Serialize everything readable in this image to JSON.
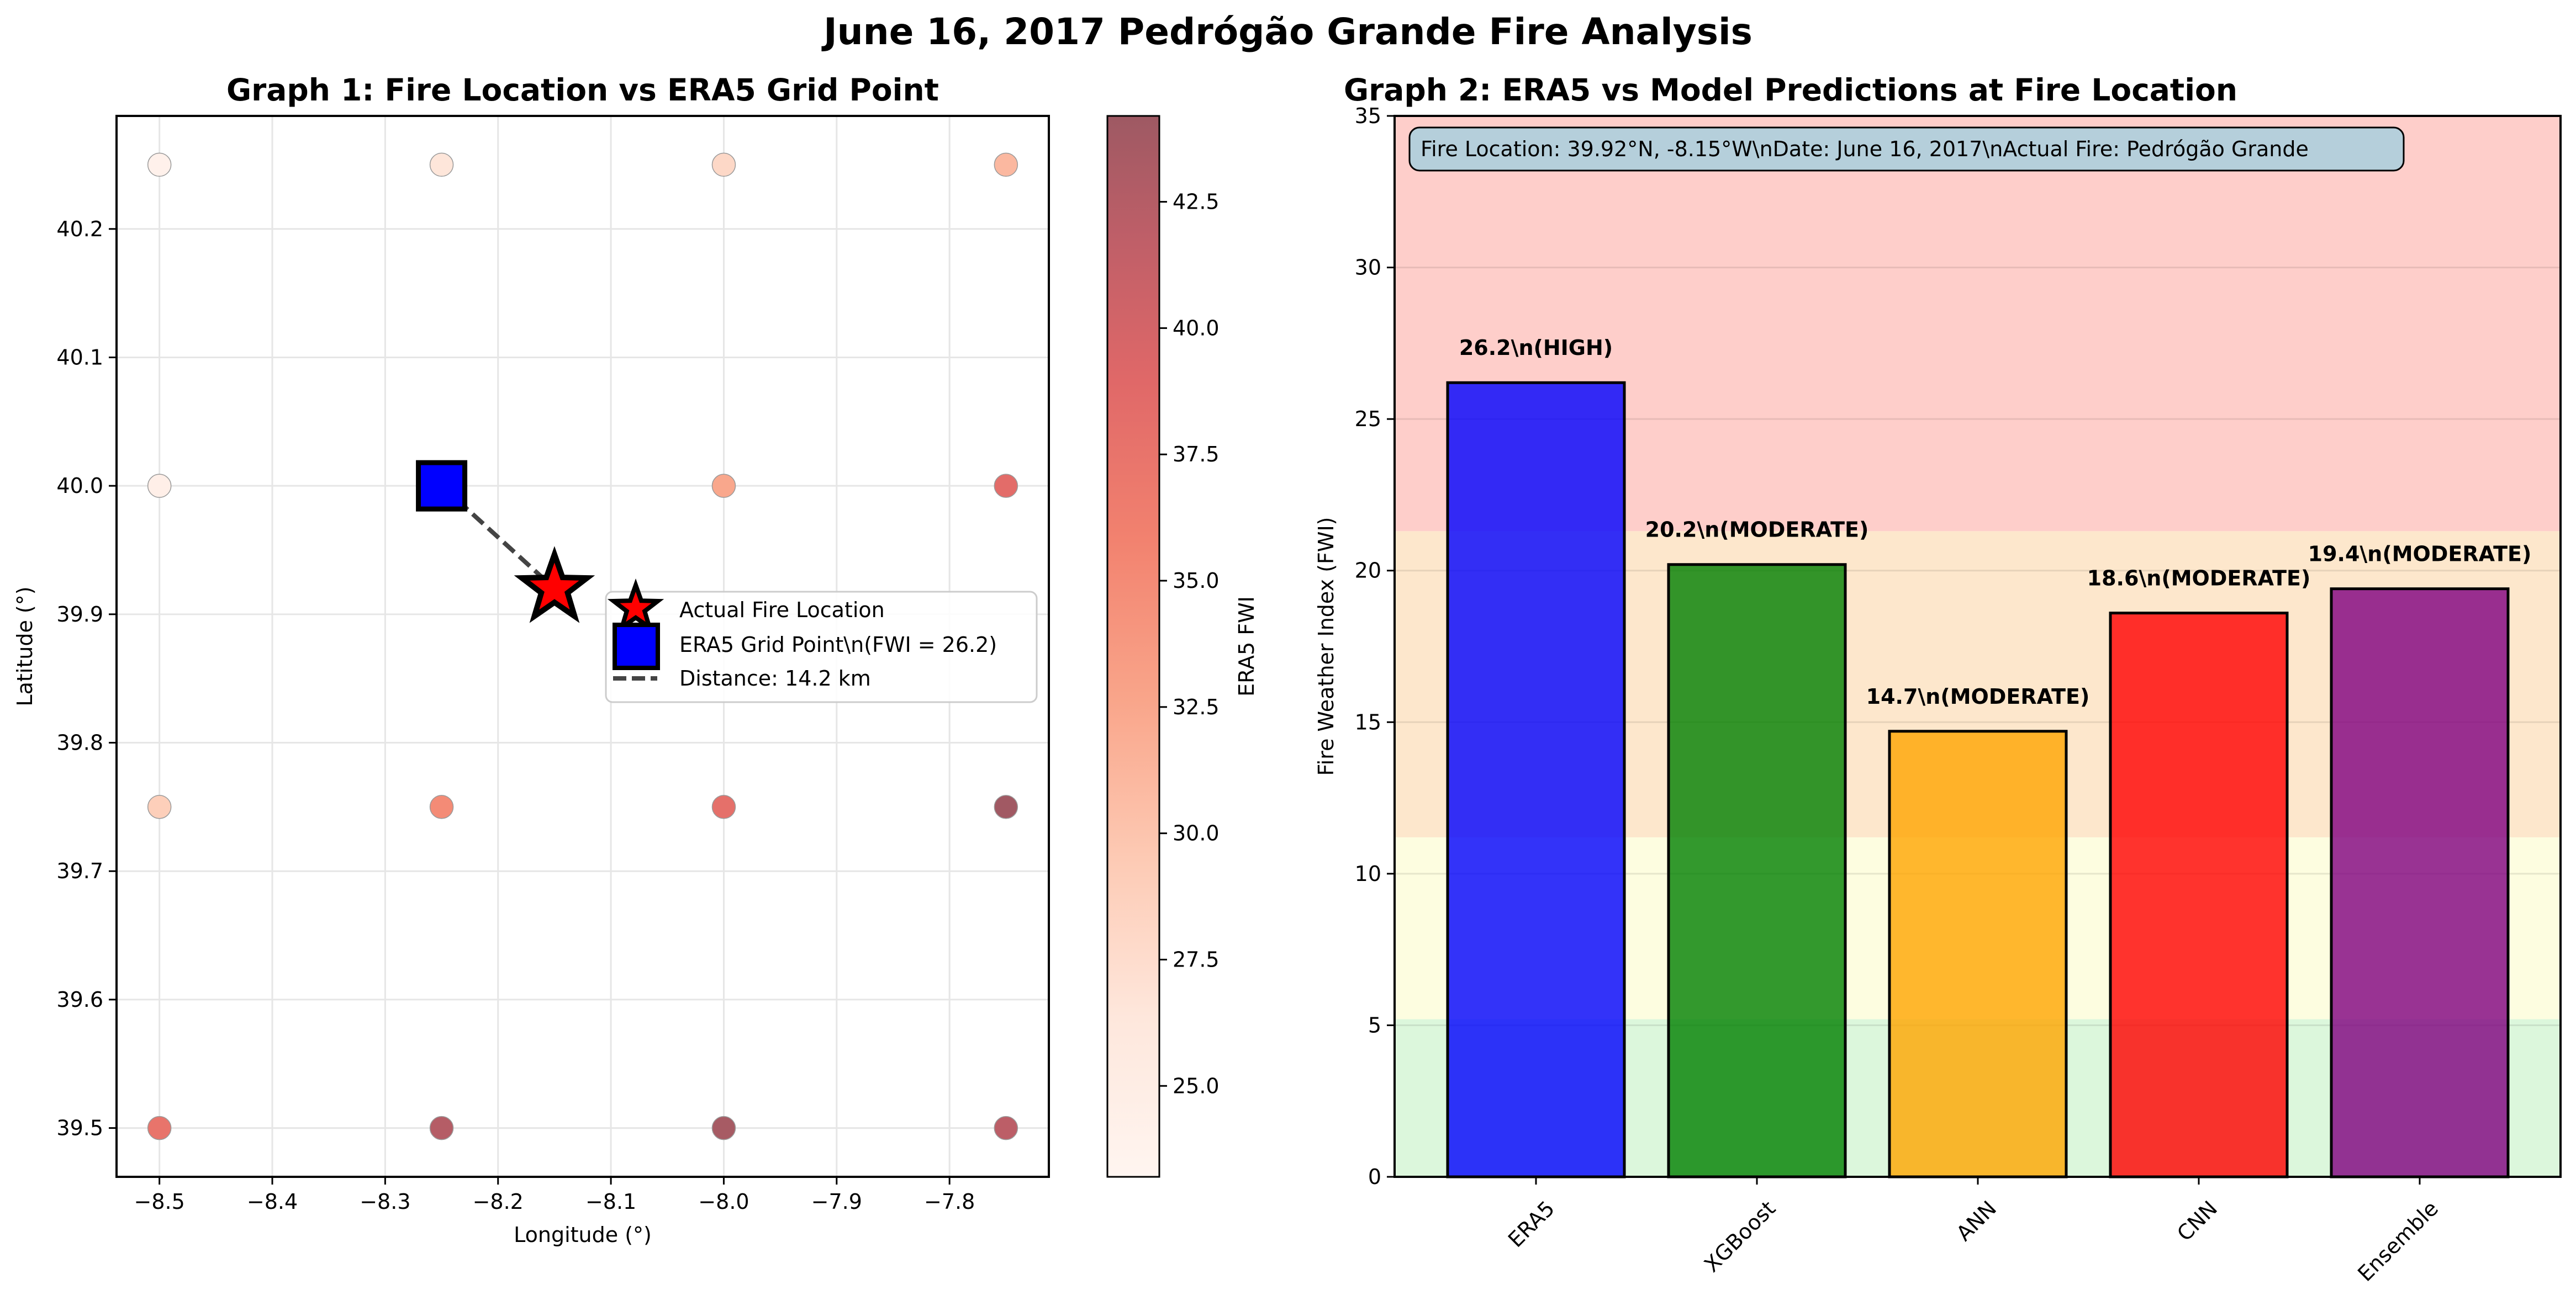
{
  "figure": {
    "title": "June 16, 2017 Pedrógão Grande Fire Analysis"
  },
  "chart_data": [
    {
      "type": "scatter",
      "title": "Graph 1: Fire Location vs ERA5 Grid Point",
      "xlabel": "Longitude (°)",
      "ylabel": "Latitude (°)",
      "xlim": [
        -8.538,
        -7.712
      ],
      "ylim": [
        39.462,
        40.288
      ],
      "xticks": [
        -8.5,
        -8.4,
        -8.3,
        -8.2,
        -8.1,
        -8.0,
        -7.9,
        -7.8
      ],
      "xtick_labels": [
        "−8.5",
        "−8.4",
        "−8.3",
        "−8.2",
        "−8.1",
        "−8.0",
        "−7.9",
        "−7.8"
      ],
      "yticks": [
        39.5,
        39.6,
        39.7,
        39.8,
        39.9,
        40.0,
        40.1,
        40.2
      ],
      "ytick_labels": [
        "39.5",
        "39.6",
        "39.7",
        "39.8",
        "39.9",
        "40.0",
        "40.1",
        "40.2"
      ],
      "grid": true,
      "colormap": "Reds",
      "colorbar": {
        "label": "ERA5 FWI",
        "range": [
          23.2,
          44.2
        ],
        "ticks": [
          25.0,
          27.5,
          30.0,
          32.5,
          35.0,
          37.5,
          40.0,
          42.5
        ],
        "tick_labels": [
          "25.0",
          "27.5",
          "30.0",
          "32.5",
          "35.0",
          "37.5",
          "40.0",
          "42.5"
        ]
      },
      "grid_points": [
        {
          "lon": -8.5,
          "lat": 40.25,
          "fwi": 24.0
        },
        {
          "lon": -8.25,
          "lat": 40.25,
          "fwi": 26.5
        },
        {
          "lon": -8.0,
          "lat": 40.25,
          "fwi": 28.0
        },
        {
          "lon": -7.75,
          "lat": 40.25,
          "fwi": 31.0
        },
        {
          "lon": -8.5,
          "lat": 40.0,
          "fwi": 24.5
        },
        {
          "lon": -8.0,
          "lat": 40.0,
          "fwi": 32.5
        },
        {
          "lon": -7.75,
          "lat": 40.0,
          "fwi": 38.5
        },
        {
          "lon": -8.5,
          "lat": 39.75,
          "fwi": 29.0
        },
        {
          "lon": -8.25,
          "lat": 39.75,
          "fwi": 35.0
        },
        {
          "lon": -8.0,
          "lat": 39.75,
          "fwi": 38.0
        },
        {
          "lon": -7.75,
          "lat": 39.75,
          "fwi": 44.0
        },
        {
          "lon": -8.5,
          "lat": 39.5,
          "fwi": 37.5
        },
        {
          "lon": -8.25,
          "lat": 39.5,
          "fwi": 42.5
        },
        {
          "lon": -8.0,
          "lat": 39.5,
          "fwi": 43.5
        },
        {
          "lon": -7.75,
          "lat": 39.5,
          "fwi": 42.0
        }
      ],
      "fire_location": {
        "lon": -8.15,
        "lat": 39.92
      },
      "era5_point": {
        "lon": -8.25,
        "lat": 40.0
      },
      "legend": {
        "placement": "center-right",
        "entries": [
          "Actual Fire Location",
          "ERA5 Grid Point\\n(FWI = 26.2)",
          "Distance: 14.2 km"
        ]
      },
      "colors": {
        "fire": "#ff0000",
        "era5": "#0000ff",
        "line": "#444444"
      }
    },
    {
      "type": "bar",
      "title": "Graph 2: ERA5 vs Model Predictions at Fire Location",
      "xlabel": "",
      "ylabel": "Fire Weather Index (FWI)",
      "ylim": [
        0,
        35
      ],
      "yticks": [
        0,
        5,
        10,
        15,
        20,
        25,
        30,
        35
      ],
      "ytick_labels": [
        "0",
        "5",
        "10",
        "15",
        "20",
        "25",
        "30",
        "35"
      ],
      "grid": true,
      "categories": [
        "ERA5",
        "XGBoost",
        "ANN",
        "CNN",
        "Ensemble"
      ],
      "values": [
        26.2,
        20.2,
        14.7,
        18.6,
        19.4
      ],
      "bar_labels": [
        "26.2\\n(HIGH)",
        "20.2\\n(MODERATE)",
        "14.7\\n(MODERATE)",
        "18.6\\n(MODERATE)",
        "19.4\\n(MODERATE)"
      ],
      "colors": [
        "#0000ff",
        "#008000",
        "#ffa500",
        "#ff0000",
        "#800080"
      ],
      "danger_bands": [
        {
          "from": 0,
          "to": 5.2,
          "color": "#dcf7dc"
        },
        {
          "from": 5.2,
          "to": 11.2,
          "color": "#fdfde0"
        },
        {
          "from": 11.2,
          "to": 21.3,
          "color": "#fde7cc"
        },
        {
          "from": 21.3,
          "to": 35,
          "color": "#fececa"
        }
      ],
      "info_box": "Fire Location: 39.92°N, -8.15°W\\nDate: June 16, 2017\\nActual Fire: Pedrógão Grande"
    }
  ]
}
